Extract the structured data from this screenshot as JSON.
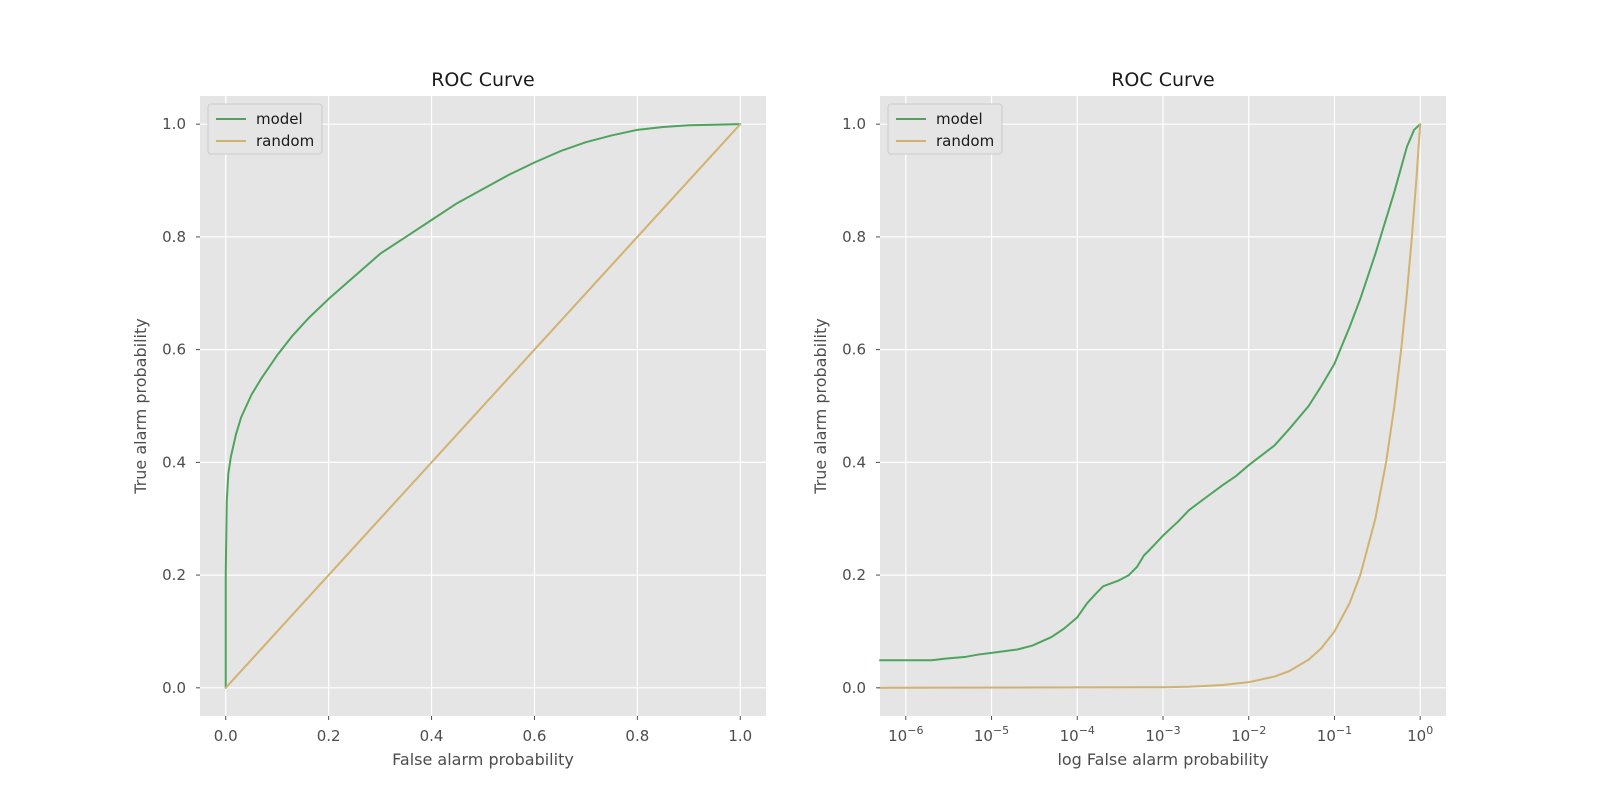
{
  "chart_data": [
    {
      "type": "line",
      "title": "ROC Curve",
      "xlabel": "False alarm probability",
      "ylabel": "True alarm probability",
      "xscale": "linear",
      "xlim": [
        -0.05,
        1.05
      ],
      "ylim": [
        -0.05,
        1.05
      ],
      "xticks": [
        0.0,
        0.2,
        0.4,
        0.6,
        0.8,
        1.0
      ],
      "xtick_labels": [
        "0.0",
        "0.2",
        "0.4",
        "0.6",
        "0.8",
        "1.0"
      ],
      "yticks": [
        0.0,
        0.2,
        0.4,
        0.6,
        0.8,
        1.0
      ],
      "ytick_labels": [
        "0.0",
        "0.2",
        "0.4",
        "0.6",
        "0.8",
        "1.0"
      ],
      "grid": true,
      "legend": "upper-left",
      "series": [
        {
          "name": "model",
          "color": "#4ea45c",
          "x": [
            0.0,
            0.0,
            0.002,
            0.005,
            0.01,
            0.02,
            0.03,
            0.05,
            0.07,
            0.1,
            0.13,
            0.16,
            0.2,
            0.25,
            0.3,
            0.35,
            0.4,
            0.45,
            0.5,
            0.55,
            0.6,
            0.65,
            0.7,
            0.75,
            0.8,
            0.85,
            0.9,
            0.95,
            1.0
          ],
          "y": [
            0.0,
            0.2,
            0.33,
            0.38,
            0.41,
            0.45,
            0.48,
            0.52,
            0.55,
            0.59,
            0.625,
            0.655,
            0.69,
            0.73,
            0.77,
            0.8,
            0.83,
            0.86,
            0.885,
            0.91,
            0.932,
            0.952,
            0.968,
            0.98,
            0.99,
            0.995,
            0.998,
            0.999,
            1.0
          ]
        },
        {
          "name": "random",
          "color": "#d1b26f",
          "x": [
            0.0,
            1.0
          ],
          "y": [
            0.0,
            1.0
          ]
        }
      ]
    },
    {
      "type": "line",
      "title": "ROC Curve",
      "xlabel": "log False alarm probability",
      "ylabel": "True alarm probability",
      "xscale": "log",
      "xlim": [
        5e-07,
        2
      ],
      "ylim": [
        -0.05,
        1.05
      ],
      "xticks": [
        1e-06,
        1e-05,
        0.0001,
        0.001,
        0.01,
        0.1,
        1
      ],
      "xtick_labels": [
        {
          "base": "10",
          "exp": "−6"
        },
        {
          "base": "10",
          "exp": "−5"
        },
        {
          "base": "10",
          "exp": "−4"
        },
        {
          "base": "10",
          "exp": "−3"
        },
        {
          "base": "10",
          "exp": "−2"
        },
        {
          "base": "10",
          "exp": "−1"
        },
        {
          "base": "10",
          "exp": "0"
        }
      ],
      "yticks": [
        0.0,
        0.2,
        0.4,
        0.6,
        0.8,
        1.0
      ],
      "ytick_labels": [
        "0.0",
        "0.2",
        "0.4",
        "0.6",
        "0.8",
        "1.0"
      ],
      "grid": true,
      "legend": "upper-left",
      "series": [
        {
          "name": "model",
          "color": "#4ea45c",
          "x": [
            5e-07,
            1e-06,
            2e-06,
            3e-06,
            5e-06,
            7e-06,
            1e-05,
            2e-05,
            3e-05,
            5e-05,
            7e-05,
            0.0001,
            0.00013,
            0.00016,
            0.0002,
            0.0003,
            0.0004,
            0.0005,
            0.0006,
            0.0007,
            0.001,
            0.0015,
            0.002,
            0.003,
            0.005,
            0.007,
            0.01,
            0.02,
            0.03,
            0.05,
            0.07,
            0.1,
            0.15,
            0.2,
            0.3,
            0.5,
            0.7,
            0.85,
            1.0
          ],
          "y": [
            0.049,
            0.049,
            0.049,
            0.052,
            0.055,
            0.059,
            0.062,
            0.068,
            0.075,
            0.09,
            0.105,
            0.125,
            0.15,
            0.165,
            0.18,
            0.19,
            0.2,
            0.215,
            0.235,
            0.245,
            0.27,
            0.295,
            0.315,
            0.335,
            0.36,
            0.375,
            0.395,
            0.43,
            0.46,
            0.5,
            0.535,
            0.575,
            0.64,
            0.69,
            0.77,
            0.88,
            0.96,
            0.99,
            1.0
          ]
        },
        {
          "name": "random",
          "color": "#d1b26f",
          "x": [
            5e-07,
            0.001,
            0.002,
            0.005,
            0.01,
            0.02,
            0.03,
            0.05,
            0.07,
            0.1,
            0.15,
            0.2,
            0.3,
            0.4,
            0.5,
            0.6,
            0.7,
            0.8,
            0.9,
            1.0
          ],
          "y": [
            5e-07,
            0.001,
            0.002,
            0.005,
            0.01,
            0.02,
            0.03,
            0.05,
            0.07,
            0.1,
            0.15,
            0.2,
            0.3,
            0.4,
            0.5,
            0.6,
            0.7,
            0.8,
            0.9,
            1.0
          ]
        }
      ]
    }
  ]
}
